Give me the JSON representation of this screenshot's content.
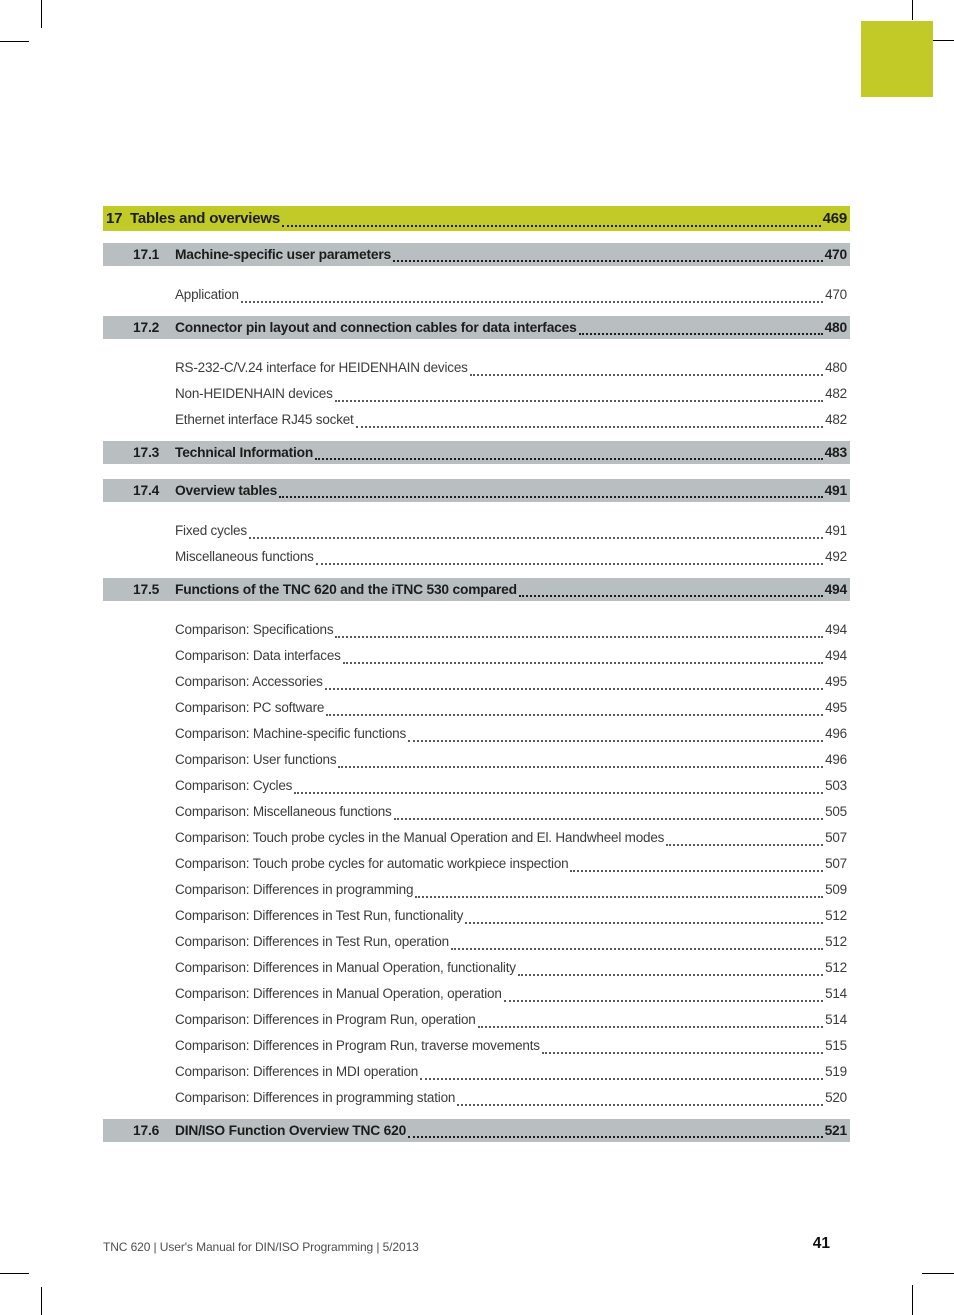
{
  "colors": {
    "chapter_bg": "#c1ca27",
    "section_bg": "#b9bfc1"
  },
  "toc": {
    "chapter": {
      "number": "17",
      "title": "Tables and overviews",
      "page": "469"
    },
    "entries": [
      {
        "type": "section",
        "number": "17.1",
        "title": "Machine-specific user parameters",
        "page": "470"
      },
      {
        "type": "sub",
        "title": "Application",
        "page": "470"
      },
      {
        "type": "section",
        "number": "17.2",
        "title": "Connector pin layout and connection cables for data interfaces",
        "page": "480"
      },
      {
        "type": "sub",
        "title": "RS-232-C/V.24 interface for HEIDENHAIN devices",
        "page": "480"
      },
      {
        "type": "sub",
        "title": "Non-HEIDENHAIN devices",
        "page": "482"
      },
      {
        "type": "sub",
        "title": "Ethernet interface RJ45 socket",
        "page": "482"
      },
      {
        "type": "section",
        "number": "17.3",
        "title": "Technical Information",
        "page": "483"
      },
      {
        "type": "section",
        "number": "17.4",
        "title": "Overview tables",
        "page": "491"
      },
      {
        "type": "sub",
        "title": "Fixed cycles",
        "page": "491"
      },
      {
        "type": "sub",
        "title": "Miscellaneous functions",
        "page": "492"
      },
      {
        "type": "section",
        "number": "17.5",
        "title": "Functions of the TNC 620 and the iTNC 530 compared",
        "page": "494"
      },
      {
        "type": "sub",
        "title": "Comparison: Specifications",
        "page": "494"
      },
      {
        "type": "sub",
        "title": "Comparison: Data interfaces",
        "page": "494"
      },
      {
        "type": "sub",
        "title": "Comparison: Accessories",
        "page": "495"
      },
      {
        "type": "sub",
        "title": "Comparison: PC software",
        "page": "495"
      },
      {
        "type": "sub",
        "title": "Comparison: Machine-specific functions",
        "page": "496"
      },
      {
        "type": "sub",
        "title": "Comparison: User functions",
        "page": "496"
      },
      {
        "type": "sub",
        "title": "Comparison: Cycles",
        "page": "503"
      },
      {
        "type": "sub",
        "title": "Comparison: Miscellaneous functions",
        "page": "505"
      },
      {
        "type": "sub",
        "title": "Comparison: Touch probe cycles in the Manual Operation and El. Handwheel modes",
        "page": "507"
      },
      {
        "type": "sub",
        "title": "Comparison: Touch probe cycles for automatic workpiece inspection",
        "page": "507"
      },
      {
        "type": "sub",
        "title": "Comparison: Differences in programming",
        "page": "509"
      },
      {
        "type": "sub",
        "title": "Comparison: Differences in Test Run, functionality",
        "page": "512"
      },
      {
        "type": "sub",
        "title": "Comparison: Differences in Test Run, operation",
        "page": "512"
      },
      {
        "type": "sub",
        "title": "Comparison: Differences in Manual Operation, functionality",
        "page": "512"
      },
      {
        "type": "sub",
        "title": "Comparison: Differences in Manual Operation, operation",
        "page": "514"
      },
      {
        "type": "sub",
        "title": "Comparison: Differences in Program Run, operation",
        "page": "514"
      },
      {
        "type": "sub",
        "title": "Comparison: Differences in Program Run, traverse movements",
        "page": "515"
      },
      {
        "type": "sub",
        "title": "Comparison: Differences in MDI operation",
        "page": "519"
      },
      {
        "type": "sub",
        "title": "Comparison: Differences in programming station",
        "page": "520"
      },
      {
        "type": "section",
        "number": "17.6",
        "title": "DIN/ISO Function Overview TNC 620",
        "page": "521"
      }
    ]
  },
  "footer": {
    "text": "TNC 620 | User's Manual for DIN/ISO Programming | 5/2013",
    "page_number": "41"
  }
}
